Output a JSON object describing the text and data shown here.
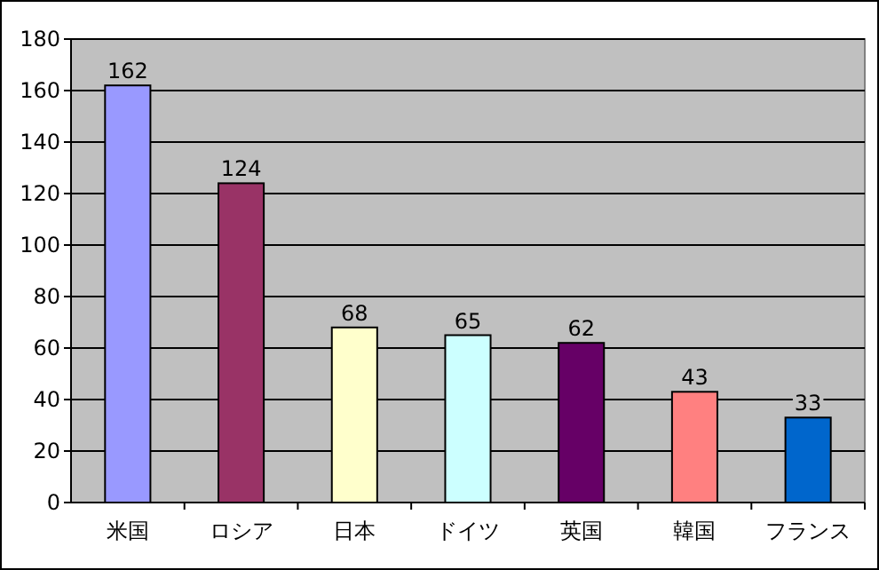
{
  "chart_data": {
    "type": "bar",
    "categories": [
      "米国",
      "ロシア",
      "日本",
      "ドイツ",
      "英国",
      "韓国",
      "フランス"
    ],
    "values": [
      162,
      124,
      68,
      65,
      62,
      43,
      33
    ],
    "colors": [
      "#9999ff",
      "#993366",
      "#ffffcc",
      "#ccffff",
      "#660066",
      "#ff8080",
      "#0066cc"
    ],
    "ylim": [
      0,
      180
    ],
    "yticks": [
      0,
      20,
      40,
      60,
      80,
      100,
      120,
      140,
      160,
      180
    ],
    "grid": "y",
    "data_labels": true
  }
}
